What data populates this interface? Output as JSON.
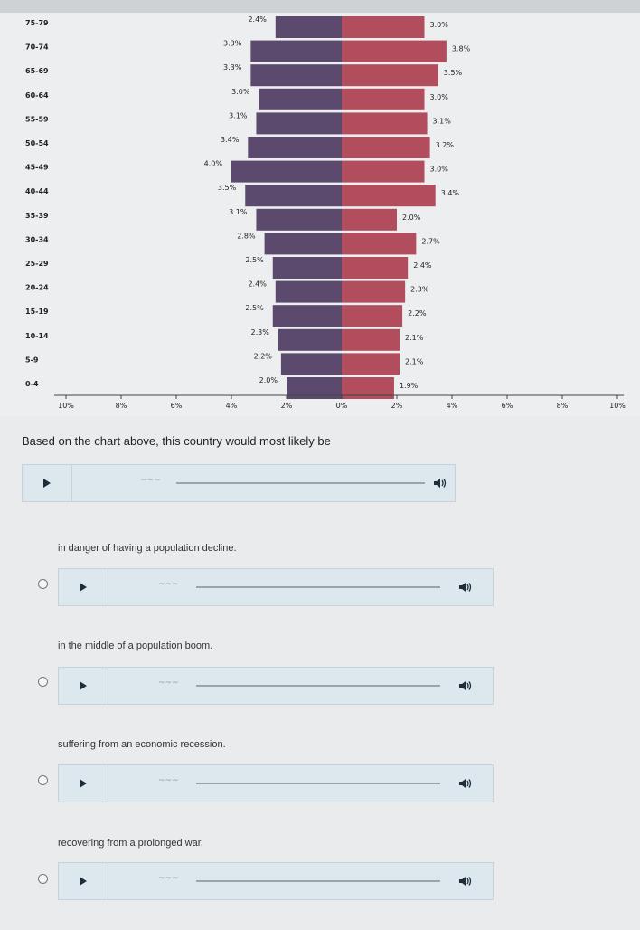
{
  "chart_data": {
    "type": "bar",
    "categories": [
      "75-79",
      "70-74",
      "65-69",
      "60-64",
      "55-59",
      "50-54",
      "45-49",
      "40-44",
      "35-39",
      "30-34",
      "25-29",
      "20-24",
      "15-19",
      "10-14",
      "5-9",
      "0-4"
    ],
    "series": [
      {
        "values": [
          2.4,
          3.3,
          3.3,
          3.0,
          3.1,
          3.4,
          4.0,
          3.5,
          3.1,
          2.8,
          2.5,
          2.4,
          2.5,
          2.3,
          2.2,
          2.0
        ],
        "labels": [
          "2.4%",
          "3.3%",
          "3.3%",
          "3.0%",
          "3.1%",
          "3.4%",
          "4.0%",
          "3.5%",
          "3.1%",
          "2.8%",
          "2.5%",
          "2.4%",
          "2.5%",
          "2.3%",
          "2.2%",
          "2.0%"
        ],
        "color": "#5b4a6e"
      },
      {
        "values": [
          3.0,
          3.8,
          3.5,
          3.0,
          3.1,
          3.2,
          3.0,
          3.4,
          2.0,
          2.7,
          2.4,
          2.3,
          2.2,
          2.1,
          2.1,
          1.9
        ],
        "labels": [
          "3.0%",
          "3.8%",
          "3.5%",
          "3.0%",
          "3.1%",
          "3.2%",
          "3.0%",
          "3.4%",
          "2.0%",
          "2.7%",
          "2.4%",
          "2.3%",
          "2.2%",
          "2.1%",
          "2.1%",
          "1.9%"
        ],
        "color": "#b24d5d"
      }
    ],
    "x_ticks": [
      "10%",
      "8%",
      "6%",
      "4%",
      "2%",
      "0%",
      "2%",
      "4%",
      "6%",
      "8%",
      "10%"
    ],
    "xlim": [
      -10,
      10
    ],
    "grid": false
  },
  "question": "Based on the chart above, this country would most likely be",
  "options": [
    {
      "text": "in danger of having a population decline."
    },
    {
      "text": "in the middle of a population boom."
    },
    {
      "text": "suffering from an economic recession."
    },
    {
      "text": "recovering from a prolonged war."
    }
  ],
  "icons": {
    "play": "play-icon",
    "volume": "volume-icon",
    "radio": "radio-icon"
  }
}
